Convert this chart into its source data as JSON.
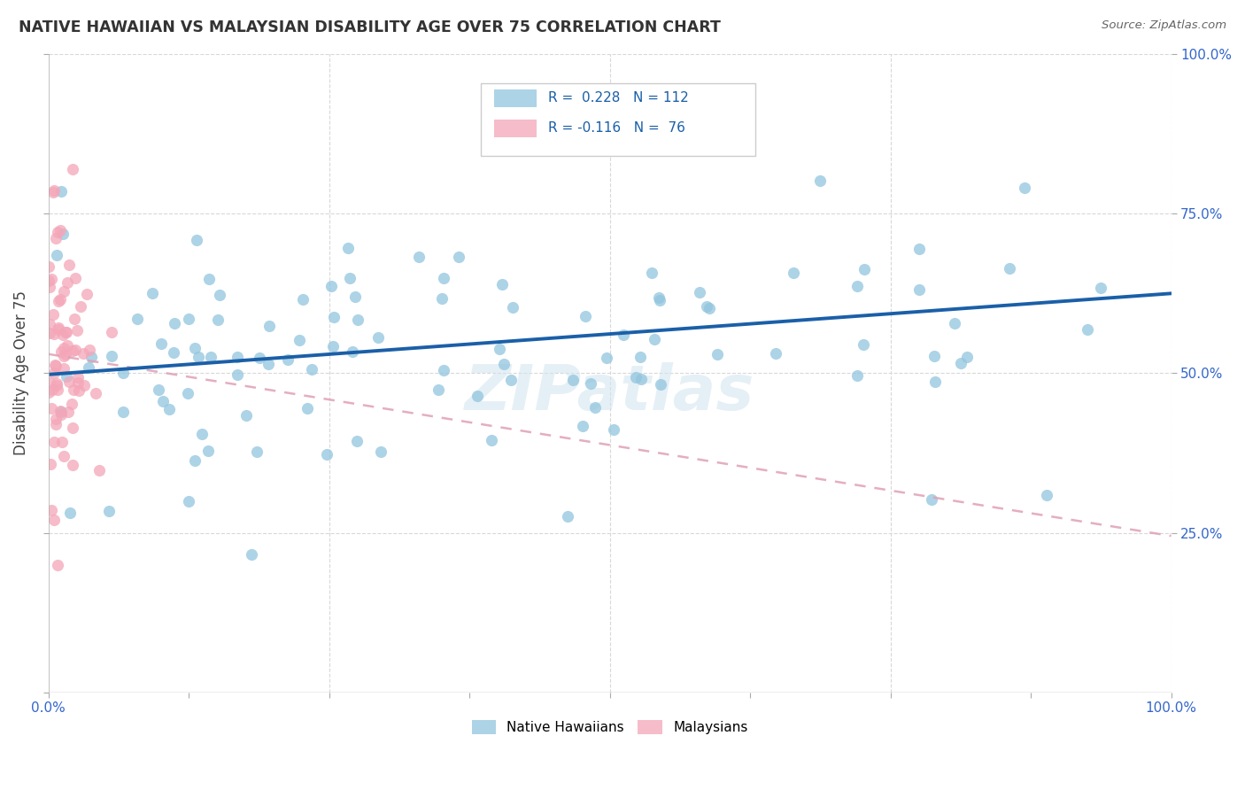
{
  "title": "NATIVE HAWAIIAN VS MALAYSIAN DISABILITY AGE OVER 75 CORRELATION CHART",
  "source": "Source: ZipAtlas.com",
  "ylabel": "Disability Age Over 75",
  "legend_bottom": [
    "Native Hawaiians",
    "Malaysians"
  ],
  "right_yticks": [
    "100.0%",
    "75.0%",
    "50.0%",
    "25.0%"
  ],
  "right_ytick_vals": [
    1.0,
    0.75,
    0.5,
    0.25
  ],
  "blue_R": 0.228,
  "blue_N": 112,
  "pink_R": -0.116,
  "pink_N": 76,
  "blue_color": "#92c5de",
  "pink_color": "#f4a6b8",
  "blue_line_color": "#1a5fa8",
  "pink_line_color": "#e8a0b0",
  "xlim": [
    0.0,
    1.0
  ],
  "ylim": [
    0.0,
    1.0
  ],
  "background_color": "#ffffff",
  "watermark": "ZIPatlas",
  "blue_trend_start_y": 0.498,
  "blue_trend_end_y": 0.625,
  "pink_trend_start_y": 0.53,
  "pink_trend_end_y": 0.245
}
